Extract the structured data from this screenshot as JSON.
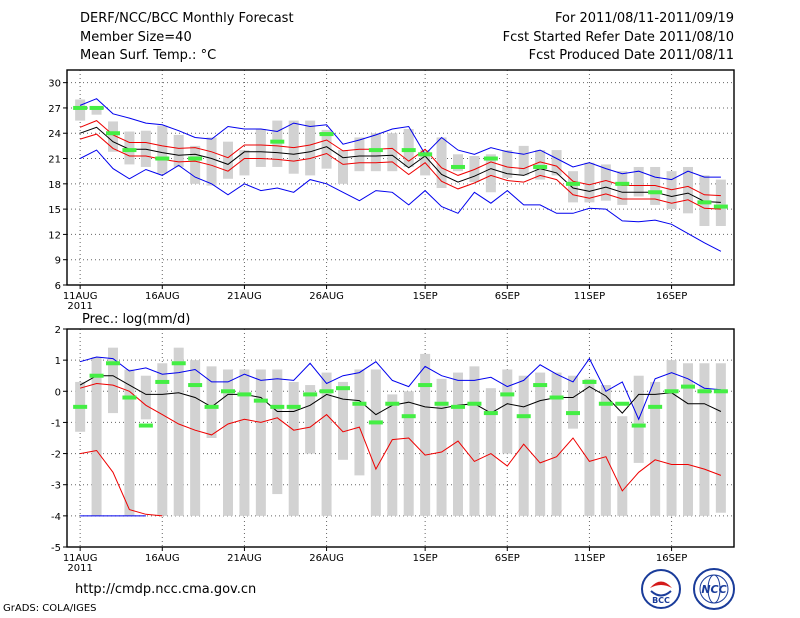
{
  "header": {
    "title": "DERF/NCC/BCC Monthly Forecast",
    "member_size": "Member Size=40",
    "top_variable": "Mean Surf. Temp.: °C",
    "period": "For 2011/08/11-2011/09/19",
    "refer_date": "Fcst Started Refer Date 2011/08/10",
    "produced_date": "Fcst Produced Date 2011/08/11"
  },
  "footer": {
    "url": "http://cmdp.ncc.cma.gov.cn",
    "grads": "GrADS: COLA/IGES",
    "logo_bcc": "BCC",
    "logo_ncc": "NCC"
  },
  "colors": {
    "box": "#d2d2d2",
    "median": "#44ee44",
    "outer": "#0000ee",
    "inner": "#ee0000",
    "mean": "#000000",
    "grid": "#666666"
  },
  "chart_data": [
    {
      "type": "box",
      "title": "Mean Surf. Temp.: °C",
      "x_tick_labels": [
        "11AUG",
        "16AUG",
        "21AUG",
        "26AUG",
        "1SEP",
        "6SEP",
        "11SEP",
        "16SEP"
      ],
      "x_tick_days": [
        0,
        5,
        10,
        15,
        21,
        26,
        31,
        36
      ],
      "first_label_extra": "2011",
      "y_ticks": [
        6,
        9,
        12,
        15,
        18,
        21,
        24,
        27,
        30
      ],
      "ylim": [
        6,
        31.5
      ],
      "xlim": [
        -0.8,
        39.8
      ],
      "box_low": [
        25.5,
        26.2,
        21.8,
        20.3,
        20.0,
        19.2,
        20.0,
        18.0,
        17.8,
        18.6,
        19.0,
        20.0,
        20.0,
        19.2,
        19.0,
        19.8,
        18.0,
        19.5,
        19.5,
        19.5,
        20.0,
        19.0,
        17.5,
        19.5,
        18.2,
        17.0,
        18.7,
        19.0,
        18.5,
        19.0,
        15.8,
        15.8,
        16.0,
        15.5,
        16.5,
        15.5,
        15.0,
        14.5,
        13.0,
        13.0
      ],
      "box_high": [
        28.0,
        27.2,
        25.4,
        24.2,
        24.3,
        24.9,
        23.8,
        22.5,
        23.5,
        23.0,
        22.0,
        24.5,
        25.5,
        25.5,
        25.5,
        24.4,
        22.0,
        23.5,
        24.0,
        24.0,
        24.5,
        22.0,
        23.5,
        21.5,
        21.3,
        21.5,
        22.0,
        22.5,
        22.0,
        22.0,
        19.5,
        20.5,
        20.3,
        19.5,
        20.0,
        20.0,
        19.5,
        20.0,
        19.0,
        18.5
      ],
      "median": [
        27.0,
        27.0,
        24.0,
        22.0,
        null,
        21.0,
        null,
        21.0,
        null,
        null,
        null,
        null,
        23.0,
        null,
        null,
        23.9,
        null,
        null,
        22.0,
        null,
        22.0,
        21.5,
        null,
        20.0,
        null,
        21.0,
        null,
        null,
        20.0,
        null,
        18.0,
        null,
        null,
        18.0,
        null,
        17.0,
        null,
        null,
        15.8,
        15.3
      ],
      "outer_max": [
        27.3,
        28.1,
        26.3,
        25.8,
        25.2,
        25.0,
        24.3,
        23.5,
        23.3,
        24.8,
        24.5,
        24.5,
        24.2,
        25.2,
        24.8,
        25.0,
        22.7,
        23.2,
        23.8,
        24.5,
        24.8,
        21.5,
        23.5,
        22.0,
        21.5,
        22.3,
        21.8,
        21.5,
        22.0,
        21.0,
        20.0,
        20.5,
        19.8,
        19.2,
        19.5,
        18.8,
        18.5,
        19.5,
        18.8,
        18.8
      ],
      "outer_min": [
        21.0,
        22.0,
        19.8,
        18.6,
        19.7,
        19.0,
        20.2,
        18.8,
        18.0,
        16.7,
        18.0,
        17.2,
        17.5,
        17.0,
        18.5,
        18.0,
        17.0,
        16.0,
        17.2,
        17.0,
        15.5,
        17.2,
        15.3,
        14.5,
        17.0,
        15.7,
        17.2,
        15.5,
        15.5,
        14.5,
        14.5,
        15.1,
        15.0,
        13.6,
        13.5,
        13.7,
        13.2,
        12.1,
        11.0,
        10.0
      ],
      "inner_max": [
        24.7,
        25.5,
        23.8,
        22.9,
        22.9,
        22.5,
        22.2,
        22.3,
        21.8,
        21.1,
        22.6,
        22.6,
        22.5,
        22.3,
        22.6,
        23.2,
        21.9,
        22.1,
        22.1,
        22.2,
        20.7,
        22.1,
        19.9,
        19.0,
        19.7,
        20.6,
        20.0,
        19.8,
        20.6,
        20.1,
        18.3,
        17.9,
        18.4,
        17.8,
        17.8,
        17.8,
        17.3,
        17.7,
        16.7,
        16.6
      ],
      "inner_min": [
        23.3,
        23.9,
        22.2,
        21.3,
        21.3,
        20.9,
        20.6,
        20.7,
        20.2,
        19.5,
        21.0,
        21.0,
        20.9,
        20.7,
        21.0,
        21.6,
        20.3,
        20.5,
        20.5,
        20.6,
        19.1,
        20.5,
        18.3,
        17.4,
        18.1,
        19.0,
        18.4,
        18.2,
        19.0,
        18.5,
        16.7,
        16.3,
        16.8,
        16.2,
        16.2,
        16.2,
        15.7,
        16.1,
        15.1,
        15.0
      ],
      "mean": [
        24.0,
        24.7,
        23.0,
        22.1,
        22.1,
        21.7,
        21.4,
        21.5,
        21.0,
        20.3,
        21.8,
        21.8,
        21.7,
        21.5,
        21.8,
        22.4,
        21.1,
        21.3,
        21.3,
        21.4,
        19.9,
        21.3,
        19.1,
        18.2,
        18.9,
        19.8,
        19.2,
        19.0,
        19.8,
        19.3,
        17.5,
        17.1,
        17.6,
        17.0,
        17.0,
        17.0,
        16.5,
        16.9,
        15.9,
        15.8
      ]
    },
    {
      "type": "box",
      "title": "Prec.: log(mm/d)",
      "x_tick_labels": [
        "11AUG",
        "16AUG",
        "21AUG",
        "26AUG",
        "1SEP",
        "6SEP",
        "11SEP",
        "16SEP"
      ],
      "x_tick_days": [
        0,
        5,
        10,
        15,
        21,
        26,
        31,
        36
      ],
      "first_label_extra": "2011",
      "y_ticks": [
        -5,
        -4,
        -3,
        -2,
        -1,
        0,
        1,
        2
      ],
      "ylim": [
        -5,
        2
      ],
      "xlim": [
        -0.8,
        39.8
      ],
      "box_low": [
        -1.3,
        -4.0,
        -0.7,
        -4.0,
        -0.9,
        -4.0,
        -4.0,
        -4.0,
        -1.5,
        -4.0,
        -4.0,
        -4.0,
        -3.3,
        -4.0,
        -2.0,
        -4.0,
        -2.2,
        -2.7,
        -4.0,
        -4.0,
        -4.0,
        -4.0,
        -4.0,
        -4.0,
        -4.0,
        -4.0,
        -2.0,
        -4.0,
        -4.0,
        -4.0,
        -1.2,
        -4.0,
        -4.0,
        -4.0,
        -2.3,
        -4.0,
        -4.0,
        -4.0,
        -4.0,
        -3.9
      ],
      "box_high": [
        0.3,
        1.1,
        1.4,
        0.7,
        0.5,
        0.9,
        1.4,
        1.0,
        0.8,
        0.7,
        0.7,
        0.7,
        0.7,
        0.3,
        0.2,
        0.6,
        0.3,
        0.7,
        0.7,
        -0.1,
        0.0,
        1.2,
        0.4,
        0.6,
        0.8,
        0.1,
        0.7,
        0.5,
        0.6,
        0.6,
        0.5,
        0.4,
        0.2,
        -0.8,
        0.5,
        0.3,
        1.0,
        0.9,
        0.9,
        0.9
      ],
      "median": [
        -0.5,
        0.5,
        0.9,
        -0.2,
        -1.1,
        0.3,
        0.9,
        0.2,
        -0.5,
        0.0,
        -0.1,
        -0.3,
        -0.5,
        -0.5,
        -0.1,
        0.0,
        0.1,
        -0.4,
        -1.0,
        -0.4,
        -0.8,
        0.2,
        -0.4,
        -0.5,
        -0.4,
        -0.7,
        -0.1,
        -0.8,
        0.2,
        -0.2,
        -0.7,
        0.3,
        -0.4,
        -0.4,
        -1.1,
        -0.5,
        0.0,
        0.15,
        0.0,
        0.0
      ],
      "outer_max": [
        0.95,
        1.1,
        1.05,
        0.65,
        0.75,
        0.55,
        0.6,
        0.7,
        0.3,
        0.3,
        0.55,
        0.35,
        0.4,
        0.35,
        0.9,
        0.25,
        0.5,
        0.6,
        0.95,
        0.35,
        0.15,
        0.8,
        0.5,
        0.35,
        0.35,
        0.45,
        0.15,
        0.35,
        0.85,
        0.55,
        0.3,
        1.05,
        0.0,
        0.3,
        -0.9,
        0.4,
        0.6,
        0.4,
        0.1,
        0.05
      ],
      "outer_min": [
        -4.0,
        -4.0,
        -4.0,
        -4.0,
        -4.0,
        null,
        null,
        null,
        null,
        null,
        null,
        null,
        null,
        null,
        null,
        null,
        null,
        null,
        null,
        null,
        null,
        null,
        null,
        null,
        null,
        null,
        null,
        null,
        null,
        null,
        null,
        null,
        null,
        null,
        null,
        null,
        null,
        null,
        null,
        null
      ],
      "inner_max": [
        0.1,
        0.25,
        0.2,
        0.0,
        -0.45,
        -0.75,
        -1.05,
        -1.25,
        -1.4,
        -1.05,
        -0.9,
        -1.0,
        -0.85,
        -1.25,
        -1.15,
        -0.75,
        -1.3,
        -1.15,
        -2.5,
        -1.55,
        -1.5,
        -2.05,
        -1.95,
        -1.6,
        -2.25,
        -2.0,
        -2.4,
        -1.7,
        -2.3,
        -2.1,
        -1.5,
        -2.25,
        -2.1,
        -3.2,
        -2.6,
        -2.2,
        -2.35,
        -2.35,
        -2.5,
        -2.7
      ],
      "inner_min": [
        -2.0,
        -1.9,
        -2.6,
        -3.8,
        -3.95,
        -4.0,
        null,
        null,
        null,
        null,
        null,
        null,
        null,
        null,
        null,
        null,
        null,
        null,
        null,
        null,
        null,
        null,
        null,
        null,
        null,
        null,
        null,
        null,
        null,
        null,
        null,
        null,
        null,
        null,
        null,
        null,
        null,
        null,
        null,
        null
      ],
      "mean": [
        0.2,
        0.5,
        0.5,
        0.2,
        -0.1,
        -0.1,
        -0.05,
        -0.2,
        -0.5,
        -0.1,
        -0.1,
        -0.2,
        -0.65,
        -0.65,
        -0.45,
        -0.1,
        -0.25,
        -0.3,
        -0.75,
        -0.45,
        -0.35,
        -0.5,
        -0.55,
        -0.45,
        -0.4,
        -0.7,
        -0.4,
        -0.5,
        -0.3,
        -0.2,
        -0.2,
        0.15,
        -0.15,
        -0.7,
        -0.1,
        -0.1,
        -0.05,
        -0.4,
        -0.4,
        -0.65
      ]
    }
  ]
}
